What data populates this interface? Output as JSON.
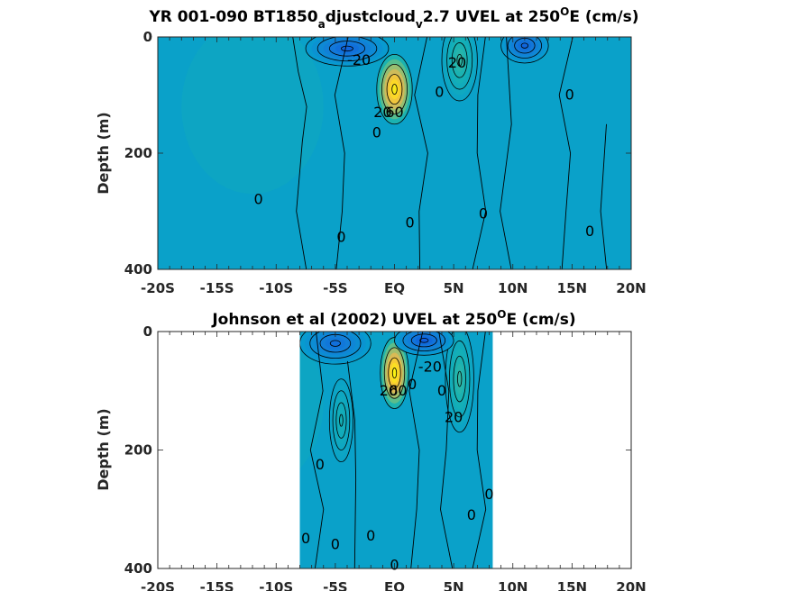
{
  "chart_data": [
    {
      "type": "heatmap",
      "subtype": "filled-contour",
      "title": {
        "prefix": "YR 001-090 BT1850",
        "sub1": "a",
        "mid": "djustcloud",
        "sub2": "v",
        "rest": "2.7 UVEL at 250",
        "sup": "O",
        "tail": "E (cm/s)"
      },
      "xlabel": "",
      "ylabel": "Depth (m)",
      "xlim": [
        -20,
        20
      ],
      "ylim": [
        0,
        400
      ],
      "y_reversed": true,
      "x_ticks": [
        -20,
        -15,
        -10,
        -5,
        0,
        5,
        10,
        15,
        20
      ],
      "x_tick_labels": [
        "-20S",
        "-15S",
        "-10S",
        "-5S",
        "EQ",
        "5N",
        "10N",
        "15N",
        "20N"
      ],
      "y_ticks": [
        0,
        200,
        400
      ],
      "y_tick_labels": [
        "0",
        "200",
        "400"
      ],
      "data_extent_x": [
        -20,
        20
      ],
      "colormap": "parula",
      "features": [
        {
          "kind": "max",
          "x": 0.0,
          "y": 90,
          "value": 90,
          "rx": 1.5,
          "ry": 60
        },
        {
          "kind": "max",
          "x": 5.5,
          "y": 40,
          "value": 22,
          "rx": 1.5,
          "ry": 70
        },
        {
          "kind": "min",
          "x": -4.0,
          "y": 20,
          "value": -22,
          "rx": 3.5,
          "ry": 30
        },
        {
          "kind": "min",
          "x": 11.0,
          "y": 15,
          "value": -22,
          "rx": 2.0,
          "ry": 30
        }
      ],
      "contour_labels": [
        {
          "text": "-20",
          "x": -3.0,
          "y": 40
        },
        {
          "text": "20",
          "x": 5.3,
          "y": 45
        },
        {
          "text": "0",
          "x": -11.5,
          "y": 280
        },
        {
          "text": "0",
          "x": -1.5,
          "y": 165
        },
        {
          "text": "60",
          "x": 0.0,
          "y": 130
        },
        {
          "text": "20",
          "x": -1.0,
          "y": 130
        },
        {
          "text": "0",
          "x": 3.8,
          "y": 95
        },
        {
          "text": "0",
          "x": 14.8,
          "y": 100
        },
        {
          "text": "0",
          "x": 1.3,
          "y": 320
        },
        {
          "text": "0",
          "x": 7.5,
          "y": 305
        },
        {
          "text": "0",
          "x": -4.5,
          "y": 345
        },
        {
          "text": "0",
          "x": 16.5,
          "y": 335
        }
      ]
    },
    {
      "type": "heatmap",
      "subtype": "filled-contour",
      "title": {
        "prefix": "Johnson et al (2002) UVEL at 250",
        "sup": "O",
        "tail": "E (cm/s)"
      },
      "xlabel": "",
      "ylabel": "Depth (m)",
      "xlim": [
        -20,
        20
      ],
      "ylim": [
        0,
        400
      ],
      "y_reversed": true,
      "x_ticks": [
        -20,
        -15,
        -10,
        -5,
        0,
        5,
        10,
        15,
        20
      ],
      "x_tick_labels": [
        "-20S",
        "-15S",
        "-10S",
        "-5S",
        "EQ",
        "5N",
        "10N",
        "15N",
        "20N"
      ],
      "y_ticks": [
        0,
        200,
        400
      ],
      "y_tick_labels": [
        "0",
        "200",
        "400"
      ],
      "data_extent_x": [
        -8,
        8.3
      ],
      "colormap": "parula",
      "features": [
        {
          "kind": "max",
          "x": 0.0,
          "y": 70,
          "value": 95,
          "rx": 1.2,
          "ry": 60
        },
        {
          "kind": "max",
          "x": 5.5,
          "y": 80,
          "value": 22,
          "rx": 1.2,
          "ry": 90
        },
        {
          "kind": "max",
          "x": -4.5,
          "y": 150,
          "value": 15,
          "rx": 1.0,
          "ry": 70
        },
        {
          "kind": "min",
          "x": 2.5,
          "y": 15,
          "value": -25,
          "rx": 2.5,
          "ry": 25
        },
        {
          "kind": "min",
          "x": -5.0,
          "y": 20,
          "value": -18,
          "rx": 3.0,
          "ry": 35
        }
      ],
      "contour_labels": [
        {
          "text": "-20",
          "x": 3.0,
          "y": 60
        },
        {
          "text": "20",
          "x": -0.5,
          "y": 100
        },
        {
          "text": "60",
          "x": 0.3,
          "y": 100
        },
        {
          "text": "0",
          "x": 1.5,
          "y": 90
        },
        {
          "text": "0",
          "x": 4.0,
          "y": 100
        },
        {
          "text": "20",
          "x": 5.0,
          "y": 145
        },
        {
          "text": "0",
          "x": -6.3,
          "y": 225
        },
        {
          "text": "0",
          "x": 8.0,
          "y": 275
        },
        {
          "text": "0",
          "x": 6.5,
          "y": 310
        },
        {
          "text": "0",
          "x": -7.5,
          "y": 350
        },
        {
          "text": "0",
          "x": -5.0,
          "y": 360
        },
        {
          "text": "0",
          "x": -2.0,
          "y": 345
        },
        {
          "text": "0",
          "x": 0.0,
          "y": 395
        }
      ]
    }
  ]
}
